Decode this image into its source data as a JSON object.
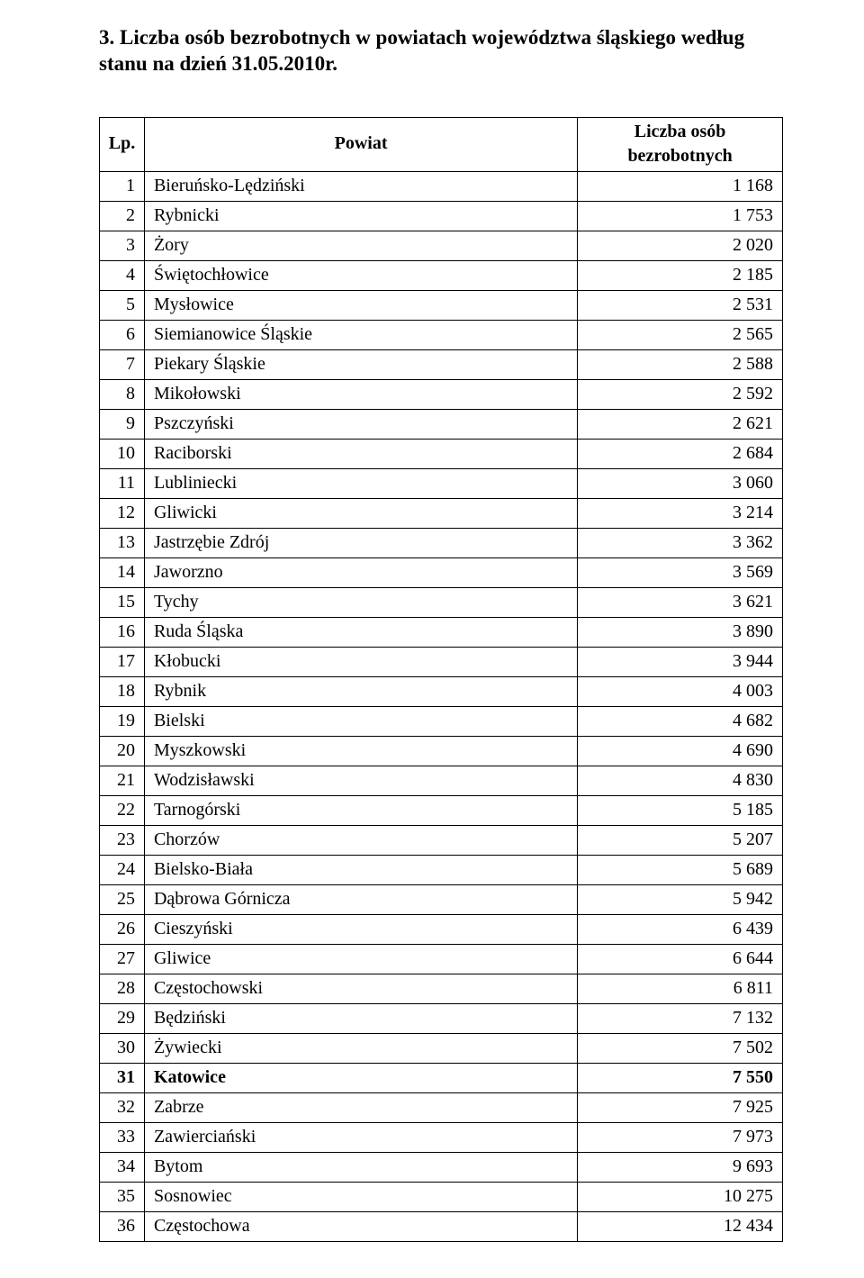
{
  "title_line1": "3. Liczba osób bezrobotnych w powiatach województwa śląskiego według",
  "title_line2": "stanu na dzień 31.05.2010r.",
  "columns": {
    "lp": "Lp.",
    "powiat": "Powiat",
    "value": "Liczba osób bezrobotnych"
  },
  "rows": [
    {
      "lp": "1",
      "powiat": "Bieruńsko-Lędziński",
      "value": "1 168",
      "bold": false
    },
    {
      "lp": "2",
      "powiat": "Rybnicki",
      "value": "1 753",
      "bold": false
    },
    {
      "lp": "3",
      "powiat": "Żory",
      "value": "2 020",
      "bold": false
    },
    {
      "lp": "4",
      "powiat": "Świętochłowice",
      "value": "2 185",
      "bold": false
    },
    {
      "lp": "5",
      "powiat": "Mysłowice",
      "value": "2 531",
      "bold": false
    },
    {
      "lp": "6",
      "powiat": "Siemianowice Śląskie",
      "value": "2 565",
      "bold": false
    },
    {
      "lp": "7",
      "powiat": "Piekary Śląskie",
      "value": "2 588",
      "bold": false
    },
    {
      "lp": "8",
      "powiat": "Mikołowski",
      "value": "2 592",
      "bold": false
    },
    {
      "lp": "9",
      "powiat": "Pszczyński",
      "value": "2 621",
      "bold": false
    },
    {
      "lp": "10",
      "powiat": "Raciborski",
      "value": "2 684",
      "bold": false
    },
    {
      "lp": "11",
      "powiat": "Lubliniecki",
      "value": "3 060",
      "bold": false
    },
    {
      "lp": "12",
      "powiat": "Gliwicki",
      "value": "3 214",
      "bold": false
    },
    {
      "lp": "13",
      "powiat": "Jastrzębie Zdrój",
      "value": "3 362",
      "bold": false
    },
    {
      "lp": "14",
      "powiat": "Jaworzno",
      "value": "3 569",
      "bold": false
    },
    {
      "lp": "15",
      "powiat": "Tychy",
      "value": "3 621",
      "bold": false
    },
    {
      "lp": "16",
      "powiat": "Ruda Śląska",
      "value": "3 890",
      "bold": false
    },
    {
      "lp": "17",
      "powiat": "Kłobucki",
      "value": "3 944",
      "bold": false
    },
    {
      "lp": "18",
      "powiat": "Rybnik",
      "value": "4 003",
      "bold": false
    },
    {
      "lp": "19",
      "powiat": "Bielski",
      "value": "4 682",
      "bold": false
    },
    {
      "lp": "20",
      "powiat": "Myszkowski",
      "value": "4 690",
      "bold": false
    },
    {
      "lp": "21",
      "powiat": "Wodzisławski",
      "value": "4 830",
      "bold": false
    },
    {
      "lp": "22",
      "powiat": "Tarnogórski",
      "value": "5 185",
      "bold": false
    },
    {
      "lp": "23",
      "powiat": "Chorzów",
      "value": "5 207",
      "bold": false
    },
    {
      "lp": "24",
      "powiat": "Bielsko-Biała",
      "value": "5 689",
      "bold": false
    },
    {
      "lp": "25",
      "powiat": "Dąbrowa Górnicza",
      "value": "5 942",
      "bold": false
    },
    {
      "lp": "26",
      "powiat": "Cieszyński",
      "value": "6 439",
      "bold": false
    },
    {
      "lp": "27",
      "powiat": "Gliwice",
      "value": "6 644",
      "bold": false
    },
    {
      "lp": "28",
      "powiat": "Częstochowski",
      "value": "6 811",
      "bold": false
    },
    {
      "lp": "29",
      "powiat": "Będziński",
      "value": "7 132",
      "bold": false
    },
    {
      "lp": "30",
      "powiat": "Żywiecki",
      "value": "7 502",
      "bold": false
    },
    {
      "lp": "31",
      "powiat": "Katowice",
      "value": "7 550",
      "bold": true
    },
    {
      "lp": "32",
      "powiat": "Zabrze",
      "value": "7 925",
      "bold": false
    },
    {
      "lp": "33",
      "powiat": "Zawierciański",
      "value": "7 973",
      "bold": false
    },
    {
      "lp": "34",
      "powiat": "Bytom",
      "value": "9 693",
      "bold": false
    },
    {
      "lp": "35",
      "powiat": "Sosnowiec",
      "value": "10 275",
      "bold": false
    },
    {
      "lp": "36",
      "powiat": "Częstochowa",
      "value": "12 434",
      "bold": false
    }
  ]
}
